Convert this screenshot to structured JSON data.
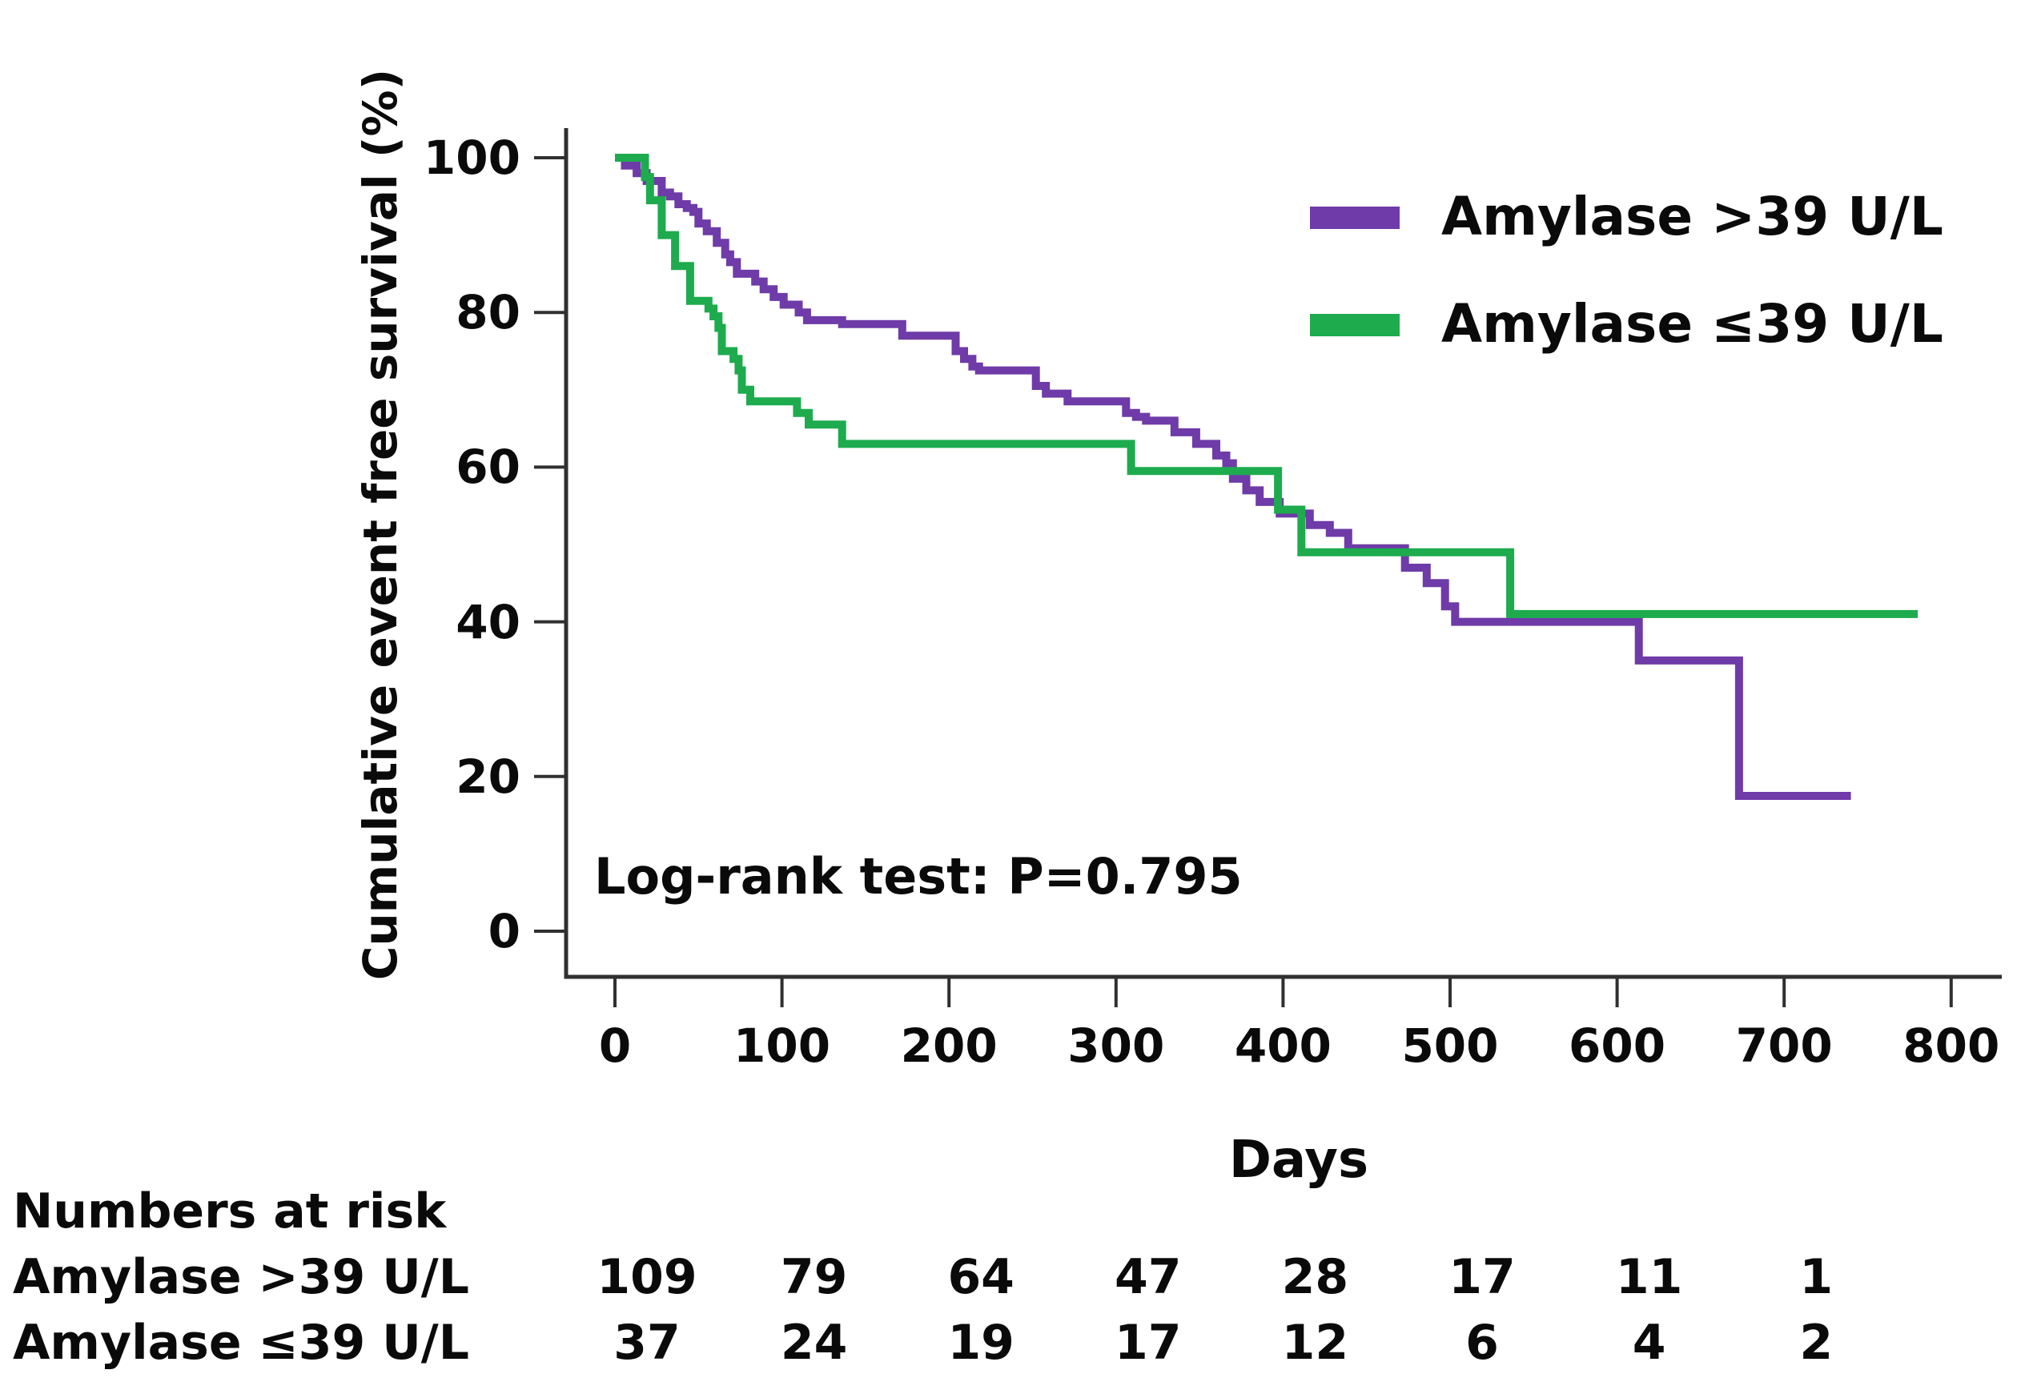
{
  "chart_data": {
    "type": "line",
    "subtype": "kaplan-meier-step",
    "xlabel": "Days",
    "ylabel": "Cumulative event free survival (%)",
    "annotation": "Log-rank test: P=0.795",
    "xlim": [
      0,
      800
    ],
    "ylim": [
      0,
      100
    ],
    "xticks": [
      0,
      100,
      200,
      300,
      400,
      500,
      600,
      700,
      800
    ],
    "yticks": [
      0,
      20,
      40,
      60,
      80,
      100
    ],
    "grid": false,
    "legend_position": "top-right",
    "axis_color": "#303030",
    "series": [
      {
        "name": "Amylase >39 U/L",
        "color": "#6E3BA8",
        "end_day": 740,
        "points": [
          [
            0,
            100
          ],
          [
            6,
            99
          ],
          [
            13,
            98
          ],
          [
            19,
            97
          ],
          [
            28,
            95.5
          ],
          [
            33,
            95
          ],
          [
            38,
            94
          ],
          [
            43,
            93.5
          ],
          [
            47,
            93
          ],
          [
            50,
            91.5
          ],
          [
            55,
            90.5
          ],
          [
            61,
            89
          ],
          [
            66,
            87.5
          ],
          [
            69,
            86.5
          ],
          [
            73,
            85
          ],
          [
            84,
            84
          ],
          [
            89,
            83
          ],
          [
            95,
            82
          ],
          [
            101,
            81
          ],
          [
            110,
            80
          ],
          [
            115,
            79
          ],
          [
            136,
            78.5
          ],
          [
            172,
            77
          ],
          [
            204,
            75
          ],
          [
            209,
            74
          ],
          [
            214,
            73
          ],
          [
            218,
            72.5
          ],
          [
            252,
            70.5
          ],
          [
            258,
            69.5
          ],
          [
            271,
            68.5
          ],
          [
            306,
            67
          ],
          [
            312,
            66.5
          ],
          [
            318,
            66
          ],
          [
            335,
            64.5
          ],
          [
            348,
            63
          ],
          [
            360,
            61.5
          ],
          [
            366,
            60.5
          ],
          [
            370,
            58.5
          ],
          [
            378,
            57
          ],
          [
            386,
            55.5
          ],
          [
            398,
            54
          ],
          [
            416,
            52.5
          ],
          [
            428,
            51.5
          ],
          [
            439,
            49.5
          ],
          [
            473,
            47
          ],
          [
            486,
            45
          ],
          [
            497,
            42
          ],
          [
            503,
            40
          ],
          [
            613,
            35
          ],
          [
            673,
            17.5
          ]
        ]
      },
      {
        "name": "Amylase ≤39 U/L",
        "color": "#1DAB4E",
        "end_day": 780,
        "points": [
          [
            0,
            100
          ],
          [
            18,
            97.5
          ],
          [
            21,
            94.5
          ],
          [
            28,
            90
          ],
          [
            36,
            86
          ],
          [
            45,
            81.5
          ],
          [
            56,
            80.5
          ],
          [
            59,
            79.5
          ],
          [
            62,
            78
          ],
          [
            64,
            75
          ],
          [
            71,
            74
          ],
          [
            74,
            72.5
          ],
          [
            76,
            70
          ],
          [
            81,
            68.5
          ],
          [
            109,
            67
          ],
          [
            116,
            65.5
          ],
          [
            136,
            63
          ],
          [
            309,
            59.5
          ],
          [
            397,
            54.5
          ],
          [
            411,
            49
          ],
          [
            536,
            41
          ]
        ]
      }
    ],
    "numbers_at_risk": {
      "header": "Numbers at risk",
      "time_points": [
        0,
        100,
        200,
        300,
        400,
        500,
        600,
        700
      ],
      "rows": [
        {
          "label": "Amylase >39 U/L",
          "values": [
            "109",
            "79",
            "64",
            "47",
            "28",
            "17",
            "11",
            "1"
          ]
        },
        {
          "label": "Amylase ≤39 U/L",
          "values": [
            "37",
            "24",
            "19",
            "17",
            "12",
            "6",
            "4",
            "2"
          ]
        }
      ]
    }
  }
}
